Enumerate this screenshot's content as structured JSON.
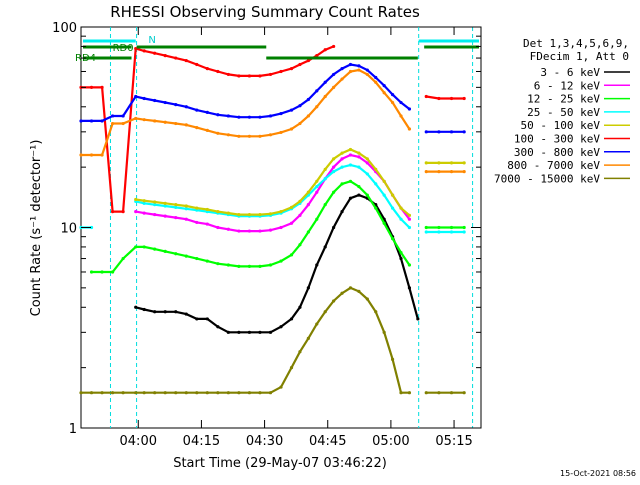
{
  "chart_data": {
    "type": "line",
    "title": "RHESSI Observing Summary Count Rates",
    "xlabel": "Start Time (29-May-07 03:46:22)",
    "ylabel": "Count Rate (s⁻¹ detector⁻¹)",
    "yscale": "log",
    "ylim": [
      1,
      100
    ],
    "xlim_minutes": [
      0,
      95
    ],
    "x_ticks": [
      {
        "label": "04:00",
        "minute": 13.6
      },
      {
        "label": "04:15",
        "minute": 28.6
      },
      {
        "label": "04:30",
        "minute": 43.6
      },
      {
        "label": "04:45",
        "minute": 58.6
      },
      {
        "label": "05:00",
        "minute": 73.6
      },
      {
        "label": "05:15",
        "minute": 88.6
      }
    ],
    "y_tick_labels": [
      "1",
      "10",
      "100"
    ],
    "legend_header": [
      "Det 1,3,4,5,6,9,",
      "FDecim 1, Att 0"
    ],
    "legend_placement": "right",
    "series": [
      {
        "name": "3 - 6 keV",
        "color": "#000000",
        "values": [
          null,
          null,
          null,
          null,
          null,
          4,
          3.9,
          3.8,
          3.8,
          3.8,
          3.7,
          3.5,
          3.5,
          3.2,
          3,
          3,
          3,
          3,
          3,
          3.2,
          3.5,
          4,
          5,
          6.5,
          8,
          10,
          12,
          14,
          14.5,
          14,
          13,
          11,
          9,
          7,
          5,
          3.5,
          null,
          null,
          null,
          null
        ]
      },
      {
        "name": "6 - 12 keV",
        "color": "#ff00ff",
        "values": [
          null,
          null,
          null,
          null,
          null,
          12,
          11.8,
          11.6,
          11.4,
          11.2,
          11,
          10.6,
          10.4,
          10,
          9.8,
          9.6,
          9.6,
          9.6,
          9.7,
          10,
          10.5,
          11.5,
          13,
          15,
          17.5,
          20,
          22,
          23,
          22.5,
          21,
          19,
          17,
          14.5,
          12.5,
          11,
          null,
          null,
          null,
          null,
          null
        ]
      },
      {
        "name": "12 - 25 keV",
        "color": "#00ff00",
        "values": [
          null,
          6,
          6,
          6,
          7,
          8,
          8,
          7.8,
          7.6,
          7.4,
          7.2,
          7,
          6.8,
          6.6,
          6.5,
          6.4,
          6.4,
          6.4,
          6.5,
          6.8,
          7.3,
          8.2,
          9.5,
          11,
          13,
          15,
          16.5,
          17,
          16,
          14.5,
          12.5,
          10.5,
          8.8,
          7.5,
          6.5,
          null,
          10,
          10,
          10,
          10
        ]
      },
      {
        "name": "25 - 50 keV",
        "color": "#00ffff",
        "values": [
          10,
          10,
          null,
          null,
          null,
          13.5,
          13.2,
          13,
          12.8,
          12.6,
          12.4,
          12.2,
          12,
          11.8,
          11.6,
          11.4,
          11.4,
          11.4,
          11.5,
          11.8,
          12.4,
          13.2,
          14.5,
          16,
          17.5,
          19,
          20,
          20.5,
          20,
          18.5,
          16.5,
          14.5,
          12.5,
          11,
          10,
          null,
          9.5,
          9.5,
          9.5,
          9.5
        ]
      },
      {
        "name": "50 - 100 keV",
        "color": "#cccc00",
        "values": [
          null,
          null,
          null,
          null,
          null,
          13.8,
          13.6,
          13.4,
          13.2,
          13,
          12.8,
          12.5,
          12.3,
          12,
          11.8,
          11.6,
          11.6,
          11.6,
          11.7,
          12,
          12.6,
          13.5,
          15,
          17,
          19.5,
          22,
          23.5,
          24.5,
          23.5,
          22,
          19.5,
          17,
          14.5,
          12.5,
          11.5,
          null,
          21,
          21,
          21,
          21
        ]
      },
      {
        "name": "100 - 300 keV",
        "color": "#ff0000",
        "values": [
          50,
          50,
          50,
          12,
          12,
          78,
          76,
          74,
          72,
          70,
          68,
          65,
          62,
          60,
          58,
          57,
          57,
          57,
          58,
          60,
          62,
          65,
          68,
          72,
          77,
          80,
          null,
          null,
          null,
          null,
          null,
          null,
          null,
          null,
          null,
          null,
          45,
          44,
          44,
          44
        ]
      },
      {
        "name": "300 - 800 keV",
        "color": "#0000ff",
        "values": [
          34,
          34,
          34,
          36,
          36,
          45,
          44,
          43,
          42,
          41,
          40,
          38.5,
          37.5,
          36.5,
          36,
          35.5,
          35.5,
          35.5,
          36,
          37,
          38.5,
          40.5,
          43.5,
          48,
          53,
          58,
          62,
          65,
          64,
          61,
          56,
          51,
          46,
          42,
          39,
          null,
          30,
          30,
          30,
          30
        ]
      },
      {
        "name": "800 - 7000 keV",
        "color": "#ff8800",
        "values": [
          23,
          23,
          23,
          33,
          33,
          35,
          34.5,
          34,
          33.5,
          33,
          32.5,
          31.5,
          30.5,
          29.5,
          29,
          28.5,
          28.5,
          28.5,
          29,
          29.8,
          31,
          33,
          36,
          40,
          45,
          50,
          55,
          60,
          61,
          58,
          53,
          47,
          42,
          36,
          31,
          null,
          19,
          19,
          19,
          19
        ]
      },
      {
        "name": "7000 - 15000 keV",
        "color": "#808000",
        "values": [
          1.5,
          1.5,
          1.5,
          1.5,
          1.5,
          1.5,
          1.5,
          1.5,
          1.5,
          1.5,
          1.5,
          1.5,
          1.5,
          1.5,
          1.5,
          1.5,
          1.5,
          1.5,
          1.5,
          1.6,
          2,
          2.4,
          2.8,
          3.3,
          3.8,
          4.3,
          4.7,
          5,
          4.8,
          4.4,
          3.8,
          3,
          2.2,
          1.5,
          1.5,
          null,
          1.5,
          1.5,
          1.5,
          1.5
        ]
      }
    ],
    "x_minutes": [
      0,
      2.5,
      5,
      7.5,
      10,
      13,
      15,
      17.5,
      20,
      22.5,
      25,
      27.5,
      30,
      32.5,
      35,
      37.5,
      40,
      42.5,
      45,
      47.5,
      50,
      52,
      54,
      56,
      58,
      60,
      62,
      64,
      66,
      68,
      70,
      72,
      74,
      76,
      78,
      80,
      82,
      85,
      88,
      91
    ],
    "annotations": [
      {
        "text": "RD0",
        "color": "#008000"
      },
      {
        "text": "RD4",
        "color": "#008000"
      },
      {
        "text": "N",
        "color": "#00cccc"
      }
    ],
    "grid": false,
    "footer_date": "15-Oct-2021 08:56"
  }
}
